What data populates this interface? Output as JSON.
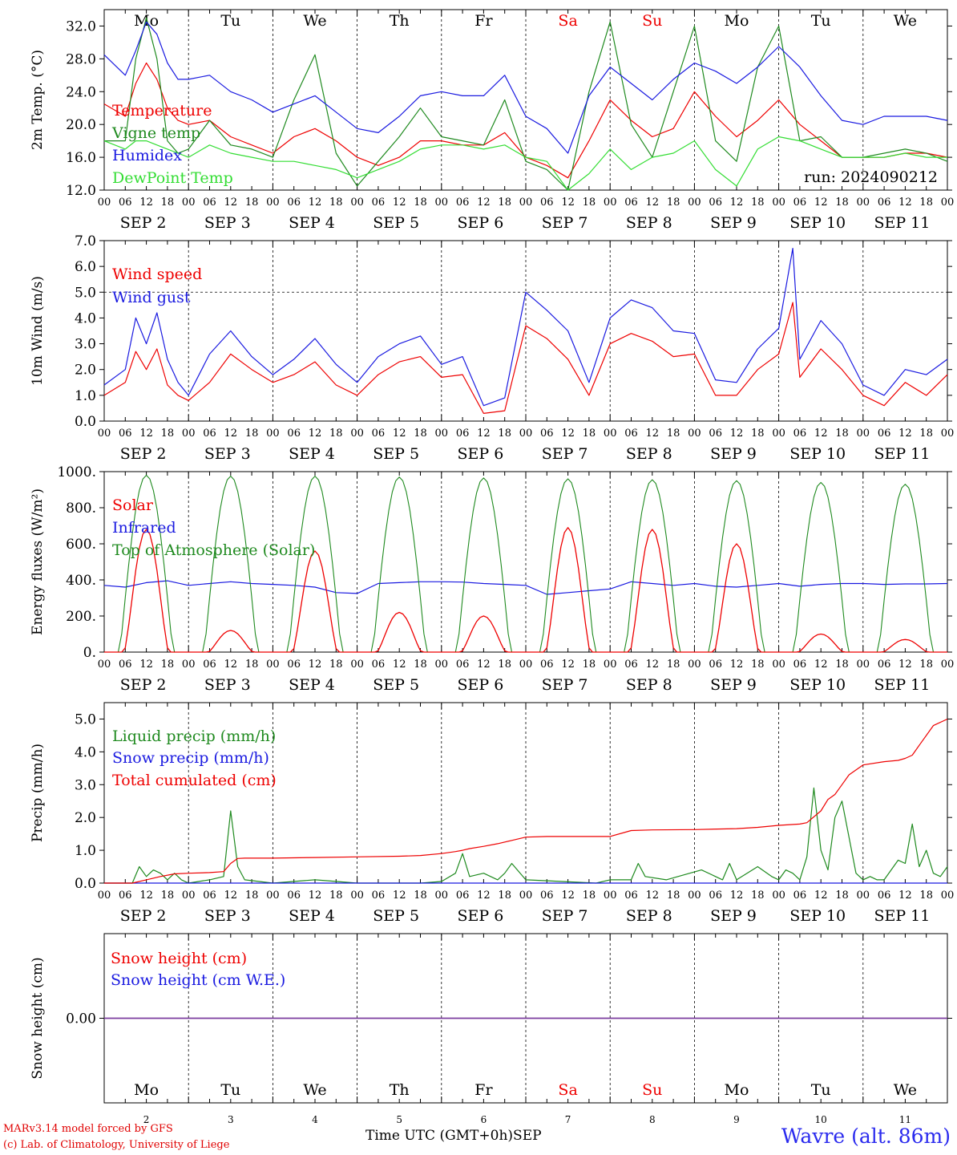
{
  "footer": {
    "model": "MARv3.14 model forced by GFS",
    "copyright": "(c) Lab. of Climatology, University of Liege",
    "time_label": "Time UTC (GMT+0h)",
    "month": "SEP",
    "station": "Wavre (alt. 86m)"
  },
  "colors": {
    "red": "#ee0000",
    "green": "#1f8a1f",
    "blue": "#1a1ae0",
    "light_green": "#33dd33",
    "purple": "#7a3fa0",
    "weekend": "#ee0000"
  },
  "axis": {
    "hour_ticks": [
      "00",
      "06",
      "12",
      "18"
    ],
    "end_tick": "00",
    "days": [
      {
        "wd": "Mo",
        "date": "SEP  2",
        "num": "2",
        "weekend": false
      },
      {
        "wd": "Tu",
        "date": "SEP  3",
        "num": "3",
        "weekend": false
      },
      {
        "wd": "We",
        "date": "SEP  4",
        "num": "4",
        "weekend": false
      },
      {
        "wd": "Th",
        "date": "SEP  5",
        "num": "5",
        "weekend": false
      },
      {
        "wd": "Fr",
        "date": "SEP  6",
        "num": "6",
        "weekend": false
      },
      {
        "wd": "Sa",
        "date": "SEP  7",
        "num": "7",
        "weekend": true
      },
      {
        "wd": "Su",
        "date": "SEP  8",
        "num": "8",
        "weekend": true
      },
      {
        "wd": "Mo",
        "date": "SEP  9",
        "num": "9",
        "weekend": false
      },
      {
        "wd": "Tu",
        "date": "SEP 10",
        "num": "10",
        "weekend": false
      },
      {
        "wd": "We",
        "date": "SEP 11",
        "num": "11",
        "weekend": false
      }
    ]
  },
  "chart_data": [
    {
      "type": "line",
      "ylabel": "2m Temp. (°C)",
      "ylim": [
        12,
        34
      ],
      "yticks": [
        12.0,
        16.0,
        20.0,
        24.0,
        28.0,
        32.0
      ],
      "ytick_labels": [
        "12.0",
        "16.0",
        "20.0",
        "24.0",
        "28.0",
        "32.0"
      ],
      "annotation": "run: 2024090212",
      "series": [
        {
          "name": "Temperature",
          "color": "red",
          "x": [
            0,
            6,
            9,
            12,
            15,
            18,
            21,
            24,
            30,
            36,
            42,
            48,
            54,
            60,
            66,
            72,
            78,
            84,
            90,
            96,
            102,
            108,
            114,
            120,
            126,
            132,
            138,
            144,
            150,
            156,
            162,
            168,
            174,
            180,
            186,
            192,
            198,
            204,
            210,
            216,
            222,
            228,
            234,
            240
          ],
          "y": [
            22.5,
            21.0,
            25.0,
            27.5,
            25.5,
            22.0,
            20.5,
            20.0,
            20.5,
            18.5,
            17.5,
            16.5,
            18.5,
            19.5,
            18.0,
            16.0,
            15.0,
            16.0,
            18.0,
            18.0,
            17.5,
            17.5,
            19.0,
            16.0,
            15.0,
            13.5,
            18.0,
            23.0,
            20.5,
            18.5,
            19.5,
            24.0,
            21.0,
            18.5,
            20.5,
            23.0,
            20.0,
            18.0,
            16.0,
            16.0,
            16.0,
            16.5,
            16.5,
            16.0
          ]
        },
        {
          "name": "Vigne temp",
          "color": "green",
          "x": [
            0,
            6,
            9,
            12,
            15,
            18,
            21,
            24,
            30,
            36,
            42,
            48,
            54,
            60,
            66,
            72,
            78,
            84,
            90,
            96,
            102,
            108,
            114,
            120,
            126,
            132,
            138,
            144,
            150,
            156,
            162,
            168,
            174,
            180,
            186,
            192,
            198,
            204,
            210,
            216,
            222,
            228,
            234,
            240
          ],
          "y": [
            18.0,
            18.0,
            28.0,
            33.0,
            28.0,
            18.0,
            16.5,
            17.0,
            20.5,
            17.5,
            17.0,
            16.0,
            23.0,
            28.5,
            16.5,
            12.5,
            15.5,
            18.5,
            22.0,
            18.5,
            18.0,
            17.5,
            23.0,
            15.5,
            14.5,
            12.0,
            24.0,
            32.5,
            20.0,
            16.0,
            24.0,
            32.0,
            18.0,
            15.5,
            27.0,
            32.0,
            18.0,
            18.5,
            16.0,
            16.0,
            16.5,
            17.0,
            16.5,
            15.5
          ]
        },
        {
          "name": "Humidex",
          "color": "blue",
          "x": [
            0,
            6,
            9,
            12,
            15,
            18,
            21,
            24,
            30,
            36,
            42,
            48,
            54,
            60,
            66,
            72,
            78,
            84,
            90,
            96,
            102,
            108,
            114,
            120,
            126,
            132,
            138,
            144,
            150,
            156,
            162,
            168,
            174,
            180,
            186,
            192,
            198,
            204,
            210,
            216,
            222,
            228,
            234,
            240
          ],
          "y": [
            28.5,
            26.0,
            29.0,
            32.5,
            31.0,
            27.5,
            25.5,
            25.5,
            26.0,
            24.0,
            23.0,
            21.5,
            22.5,
            23.5,
            21.5,
            19.5,
            19.0,
            21.0,
            23.5,
            24.0,
            23.5,
            23.5,
            26.0,
            21.0,
            19.5,
            16.5,
            23.5,
            27.0,
            25.0,
            23.0,
            25.5,
            27.5,
            26.5,
            25.0,
            27.0,
            29.5,
            27.0,
            23.5,
            20.5,
            20.0,
            21.0,
            21.0,
            21.0,
            20.5
          ]
        },
        {
          "name": "DewPoint Temp",
          "color": "light_green",
          "x": [
            0,
            6,
            9,
            12,
            15,
            18,
            21,
            24,
            30,
            36,
            42,
            48,
            54,
            60,
            66,
            72,
            78,
            84,
            90,
            96,
            102,
            108,
            114,
            120,
            126,
            132,
            138,
            144,
            150,
            156,
            162,
            168,
            174,
            180,
            186,
            192,
            198,
            204,
            210,
            216,
            222,
            228,
            234,
            240
          ],
          "y": [
            18.0,
            17.0,
            18.0,
            18.0,
            17.5,
            17.0,
            16.5,
            16.0,
            17.5,
            16.5,
            16.0,
            15.5,
            15.5,
            15.0,
            14.5,
            13.5,
            14.5,
            15.5,
            17.0,
            17.5,
            17.5,
            17.0,
            17.5,
            16.0,
            15.5,
            12.0,
            14.0,
            17.0,
            14.5,
            16.0,
            16.5,
            18.0,
            14.5,
            12.5,
            17.0,
            18.5,
            18.0,
            17.0,
            16.0,
            16.0,
            16.0,
            16.5,
            16.0,
            16.0
          ]
        }
      ]
    },
    {
      "type": "line",
      "ylabel": "10m Wind (m/s)",
      "ylim": [
        0,
        7
      ],
      "yticks": [
        0,
        1,
        2,
        3,
        4,
        5,
        6,
        7
      ],
      "ytick_labels": [
        "0.0",
        "1.0",
        "2.0",
        "3.0",
        "4.0",
        "5.0",
        "6.0",
        "7.0"
      ],
      "dashed_y": 5.0,
      "series": [
        {
          "name": "Wind speed",
          "color": "red",
          "x": [
            0,
            6,
            9,
            12,
            15,
            18,
            21,
            24,
            30,
            36,
            42,
            48,
            54,
            60,
            66,
            72,
            78,
            84,
            90,
            96,
            102,
            108,
            114,
            120,
            126,
            132,
            138,
            144,
            150,
            156,
            162,
            168,
            174,
            180,
            186,
            192,
            196,
            198,
            204,
            210,
            216,
            222,
            228,
            234,
            240
          ],
          "y": [
            1.0,
            1.5,
            2.7,
            2.0,
            2.8,
            1.4,
            1.0,
            0.8,
            1.5,
            2.6,
            2.0,
            1.5,
            1.8,
            2.3,
            1.4,
            1.0,
            1.8,
            2.3,
            2.5,
            1.7,
            1.8,
            0.3,
            0.4,
            3.7,
            3.2,
            2.4,
            1.0,
            3.0,
            3.4,
            3.1,
            2.5,
            2.6,
            1.0,
            1.0,
            2.0,
            2.6,
            4.6,
            1.7,
            2.8,
            2.0,
            1.0,
            0.6,
            1.5,
            1.0,
            1.8
          ]
        },
        {
          "name": "Wind gust",
          "color": "blue",
          "x": [
            0,
            6,
            9,
            12,
            15,
            18,
            21,
            24,
            30,
            36,
            42,
            48,
            54,
            60,
            66,
            72,
            78,
            84,
            90,
            96,
            102,
            108,
            114,
            120,
            126,
            132,
            138,
            144,
            150,
            156,
            162,
            168,
            174,
            180,
            186,
            192,
            196,
            198,
            204,
            210,
            216,
            222,
            228,
            234,
            240
          ],
          "y": [
            1.4,
            2.0,
            4.0,
            3.0,
            4.2,
            2.4,
            1.5,
            1.0,
            2.6,
            3.5,
            2.5,
            1.8,
            2.4,
            3.2,
            2.2,
            1.5,
            2.5,
            3.0,
            3.3,
            2.2,
            2.5,
            0.6,
            0.9,
            5.0,
            4.3,
            3.5,
            1.5,
            4.0,
            4.7,
            4.4,
            3.5,
            3.4,
            1.6,
            1.5,
            2.8,
            3.6,
            6.7,
            2.4,
            3.9,
            3.0,
            1.4,
            1.0,
            2.0,
            1.8,
            2.4
          ]
        }
      ]
    },
    {
      "type": "line",
      "ylabel": "Energy fluxes (W/m²)",
      "ylim": [
        0,
        1000
      ],
      "yticks": [
        0,
        200,
        400,
        600,
        800,
        1000
      ],
      "ytick_labels": [
        "0.",
        "200.",
        "400.",
        "600.",
        "800.",
        "1000."
      ],
      "toa_peaks": [
        980,
        975,
        975,
        970,
        965,
        960,
        955,
        950,
        940,
        930
      ],
      "solar_peaks": [
        680,
        120,
        560,
        220,
        200,
        690,
        680,
        600,
        100,
        70
      ],
      "series": [
        {
          "name": "Solar",
          "color": "red"
        },
        {
          "name": "Infrared",
          "color": "blue",
          "x": [
            0,
            6,
            12,
            18,
            24,
            30,
            36,
            42,
            48,
            54,
            60,
            66,
            72,
            78,
            84,
            90,
            96,
            102,
            108,
            114,
            120,
            126,
            132,
            138,
            144,
            150,
            156,
            162,
            168,
            174,
            180,
            186,
            192,
            198,
            204,
            210,
            216,
            222,
            228,
            234,
            240
          ],
          "y": [
            370,
            360,
            385,
            395,
            370,
            380,
            390,
            380,
            375,
            370,
            360,
            330,
            325,
            380,
            385,
            390,
            390,
            388,
            380,
            375,
            370,
            320,
            330,
            340,
            350,
            390,
            380,
            370,
            380,
            365,
            360,
            370,
            380,
            365,
            375,
            380,
            380,
            375,
            378,
            378,
            380
          ]
        },
        {
          "name": "Top of Atmosphere (Solar)",
          "color": "green"
        }
      ]
    },
    {
      "type": "line",
      "ylabel": "Precip (mm/h)",
      "ylim": [
        0,
        5.5
      ],
      "yticks": [
        0,
        1,
        2,
        3,
        4,
        5
      ],
      "ytick_labels": [
        "0.0",
        "1.0",
        "2.0",
        "3.0",
        "4.0",
        "5.0"
      ],
      "series": [
        {
          "name": "Liquid precip (mm/h)",
          "color": "green",
          "x": [
            0,
            8,
            10,
            12,
            14,
            16,
            18,
            20,
            22,
            24,
            30,
            34,
            36,
            38,
            40,
            48,
            60,
            72,
            90,
            96,
            100,
            102,
            104,
            108,
            112,
            114,
            116,
            120,
            140,
            144,
            150,
            152,
            154,
            160,
            170,
            176,
            178,
            180,
            186,
            190,
            192,
            194,
            196,
            198,
            200,
            202,
            204,
            206,
            208,
            210,
            214,
            216,
            218,
            220,
            222,
            226,
            228,
            230,
            232,
            234,
            236,
            238,
            240
          ],
          "y": [
            0,
            0,
            0.5,
            0.2,
            0.4,
            0.3,
            0.1,
            0.3,
            0.1,
            0,
            0.1,
            0.2,
            2.2,
            0.5,
            0.1,
            0,
            0.1,
            0,
            0,
            0.05,
            0.3,
            0.9,
            0.2,
            0.3,
            0.1,
            0.3,
            0.6,
            0.1,
            0,
            0.1,
            0.1,
            0.6,
            0.2,
            0.1,
            0.4,
            0.1,
            0.6,
            0.1,
            0.5,
            0.2,
            0.1,
            0.4,
            0.3,
            0.1,
            0.8,
            2.9,
            1.0,
            0.4,
            2.0,
            2.5,
            0.3,
            0.1,
            0.2,
            0.1,
            0.1,
            0.7,
            0.6,
            1.8,
            0.5,
            1.0,
            0.3,
            0.2,
            0.5
          ]
        },
        {
          "name": "Snow precip (mm/h)",
          "color": "blue",
          "x": [
            0,
            240
          ],
          "y": [
            0,
            0
          ]
        },
        {
          "name": "Total cumulated (cm)",
          "color": "red",
          "x": [
            0,
            8,
            12,
            16,
            20,
            24,
            30,
            34,
            36,
            38,
            40,
            48,
            60,
            72,
            84,
            90,
            96,
            100,
            102,
            104,
            108,
            112,
            116,
            120,
            126,
            132,
            144,
            150,
            156,
            168,
            180,
            186,
            192,
            198,
            200,
            204,
            206,
            208,
            210,
            212,
            216,
            222,
            226,
            228,
            230,
            232,
            236,
            240
          ],
          "y": [
            0,
            0,
            0.1,
            0.2,
            0.28,
            0.3,
            0.32,
            0.35,
            0.6,
            0.75,
            0.76,
            0.76,
            0.78,
            0.8,
            0.82,
            0.84,
            0.9,
            0.96,
            1.0,
            1.05,
            1.12,
            1.2,
            1.3,
            1.4,
            1.42,
            1.42,
            1.42,
            1.6,
            1.62,
            1.63,
            1.66,
            1.7,
            1.76,
            1.8,
            1.84,
            2.2,
            2.55,
            2.7,
            3.0,
            3.3,
            3.6,
            3.7,
            3.74,
            3.8,
            3.9,
            4.2,
            4.8,
            5.0
          ]
        }
      ]
    },
    {
      "type": "line",
      "ylabel": "Snow height (cm)",
      "ylim": [
        -1,
        1
      ],
      "yticks": [
        0
      ],
      "ytick_labels": [
        "0.00"
      ],
      "series": [
        {
          "name": "Snow height (cm)",
          "color": "red",
          "x": [
            0,
            240
          ],
          "y": [
            0,
            0
          ]
        },
        {
          "name": "Snow height (cm W.E.)",
          "color": "blue",
          "x": [
            0,
            240
          ],
          "y": [
            0,
            0
          ]
        }
      ]
    }
  ]
}
